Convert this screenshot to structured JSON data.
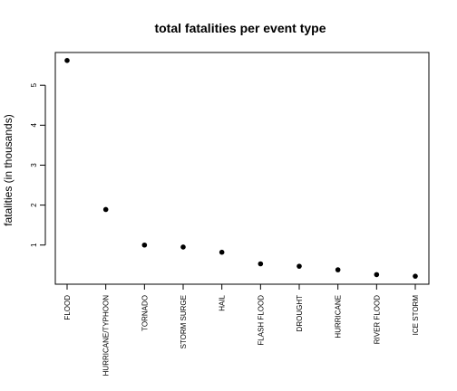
{
  "chart_data": {
    "type": "scatter",
    "title": "total fatalities per event type",
    "xlabel": "",
    "ylabel": "fatalities (in thousands)",
    "categories": [
      "FLOOD",
      "HURRICANE/TYPHOON",
      "TORNADO",
      "STORM SURGE",
      "HAIL",
      "FLASH FLOOD",
      "DROUGHT",
      "HURRICANE",
      "RIVER FLOOD",
      "ICE STORM"
    ],
    "values": [
      5.62,
      1.89,
      1.0,
      0.95,
      0.82,
      0.53,
      0.47,
      0.38,
      0.26,
      0.22
    ],
    "yticks": [
      1,
      2,
      3,
      4,
      5
    ],
    "ylim": [
      0.02,
      5.82
    ],
    "grid": false,
    "legend": "none"
  }
}
